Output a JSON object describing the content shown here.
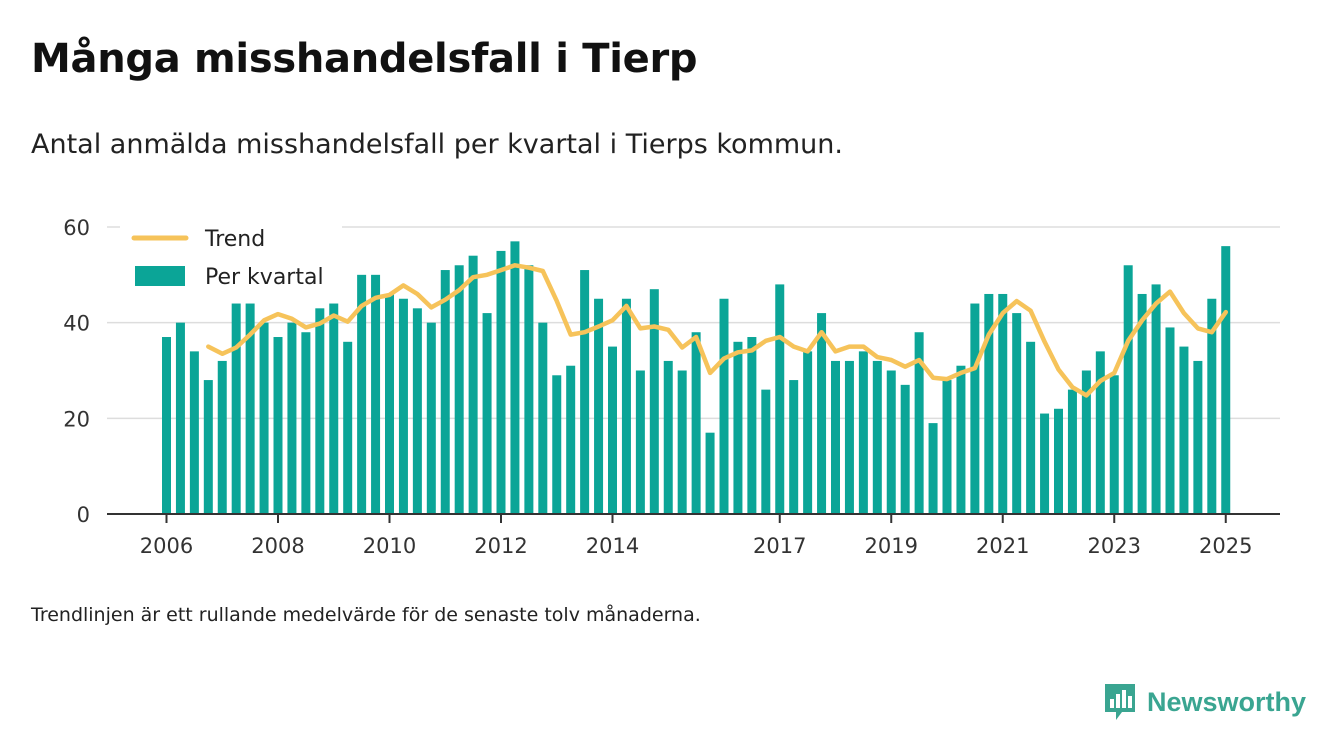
{
  "title": "Många misshandelsfall i Tierp",
  "subtitle": "Antal anmälda misshandelsfall per kvartal i Tierps kommun.",
  "footnote": "Trendlinjen är ett rullande medelvärde för de senaste tolv månaderna.",
  "brand": {
    "name": "Newsworthy",
    "icon": "newsworthy-logo-icon",
    "color": "#3aa591"
  },
  "colors": {
    "bars": "#0ba597",
    "trend": "#f6c35a",
    "axis": "#333333",
    "grid": "#dddddd"
  },
  "chart_data": {
    "type": "bar",
    "x_unit": "quarter",
    "ylim": [
      0,
      60
    ],
    "yticks": [
      0,
      20,
      40,
      60
    ],
    "xticks": [
      {
        "label": "2006",
        "year": 2006
      },
      {
        "label": "2008",
        "year": 2008
      },
      {
        "label": "2010",
        "year": 2010
      },
      {
        "label": "2012",
        "year": 2012
      },
      {
        "label": "2014",
        "year": 2014
      },
      {
        "label": "2017",
        "year": 2017
      },
      {
        "label": "2019",
        "year": 2019
      },
      {
        "label": "2021",
        "year": 2021
      },
      {
        "label": "2023",
        "year": 2023
      },
      {
        "label": "2025",
        "year": 2025
      }
    ],
    "grid": true,
    "legend_position": "top-left",
    "series": [
      {
        "name": "Trend",
        "type": "line",
        "first_quarter": "2006-Q4",
        "values": [
          35,
          33.5,
          34.8,
          37.5,
          40.5,
          41.8,
          40.8,
          39,
          39.8,
          41.5,
          40.2,
          43.5,
          45.2,
          45.8,
          47.8,
          46,
          43.2,
          44.8,
          46.8,
          49.5,
          50,
          51,
          52,
          51.5,
          50.8,
          44.5,
          37.5,
          38,
          39.2,
          40.5,
          43.5,
          38.8,
          39.2,
          38.5,
          34.8,
          37,
          29.5,
          32.5,
          33.8,
          34.2,
          36.2,
          37,
          35,
          34,
          38,
          34,
          35,
          35,
          32.8,
          32.2,
          30.8,
          32.2,
          28.5,
          28.2,
          29.5,
          30.5,
          37.5,
          42,
          44.5,
          42.5,
          36,
          30.2,
          26.5,
          24.8,
          27.8,
          29.5,
          36.2,
          40.5,
          44,
          46.5,
          42,
          38.8,
          38,
          42.2
        ]
      },
      {
        "name": "Per kvartal",
        "type": "bar",
        "first_quarter": "2006-Q1",
        "values": [
          37,
          40,
          34,
          28,
          32,
          44,
          44,
          40,
          37,
          40,
          38,
          43,
          44,
          36,
          50,
          50,
          46,
          45,
          43,
          40,
          51,
          52,
          54,
          42,
          55,
          57,
          52,
          40,
          29,
          31,
          51,
          45,
          35,
          45,
          30,
          47,
          32,
          30,
          38,
          17,
          45,
          36,
          37,
          26,
          48,
          28,
          34,
          42,
          32,
          32,
          34,
          32,
          30,
          27,
          38,
          19,
          28,
          31,
          44,
          46,
          46,
          42,
          36,
          21,
          22,
          26,
          30,
          34,
          29,
          52,
          46,
          48,
          39,
          35,
          32,
          45,
          56
        ]
      }
    ]
  }
}
